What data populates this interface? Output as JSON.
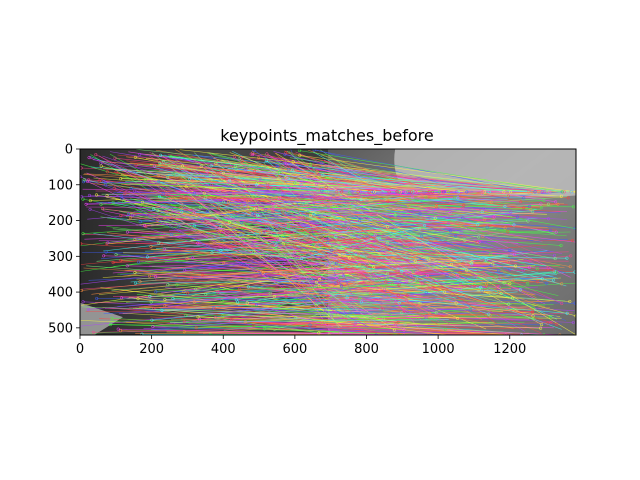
{
  "chart_data": {
    "type": "image",
    "title": "keypoints_matches_before",
    "xlabel": "",
    "ylabel": "",
    "xlim": [
      0,
      1385
    ],
    "ylim": [
      520,
      0
    ],
    "x_ticks": [
      0,
      200,
      400,
      600,
      800,
      1000,
      1200
    ],
    "y_ticks": [
      0,
      100,
      200,
      300,
      400,
      500
    ],
    "x_tick_labels": [
      "0",
      "200",
      "400",
      "600",
      "800",
      "1000",
      "1200"
    ],
    "y_tick_labels": [
      "0",
      "100",
      "200",
      "300",
      "400",
      "500"
    ],
    "grid": false,
    "legend": "none",
    "line_colors": [
      "#ff4040",
      "#40ff40",
      "#4060ff",
      "#ffff40",
      "#ff40ff",
      "#40ffff",
      "#ff9040",
      "#b040ff",
      "#80ff80",
      "#ff4090"
    ]
  }
}
